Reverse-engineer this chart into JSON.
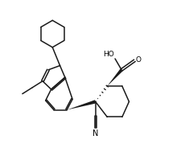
{
  "bg_color": "#ffffff",
  "line_color": "#1a1a1a",
  "line_width": 1.1,
  "fig_width": 2.35,
  "fig_height": 1.84,
  "dpi": 100,
  "text_color": "#000000",
  "font_size": 6.5,
  "xlim": [
    0,
    10
  ],
  "ylim": [
    0,
    7.8
  ]
}
